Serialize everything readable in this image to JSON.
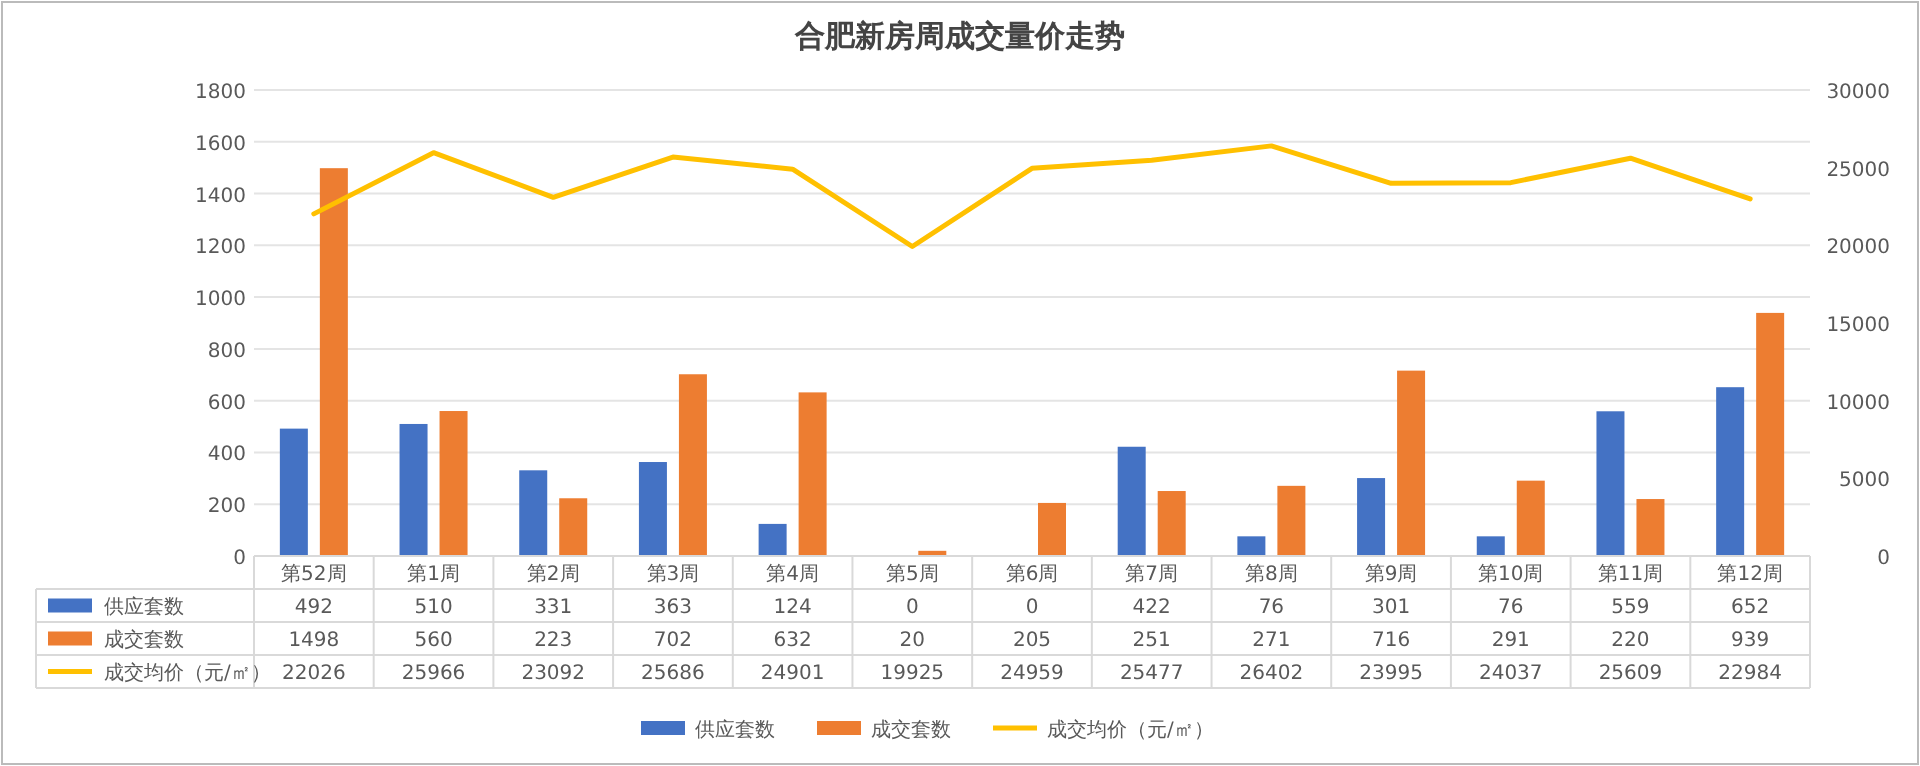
{
  "chart_data": {
    "type": "bar",
    "title": "合肥新房周成交量价走势",
    "categories": [
      "第52周",
      "第1周",
      "第2周",
      "第3周",
      "第4周",
      "第5周",
      "第6周",
      "第7周",
      "第8周",
      "第9周",
      "第10周",
      "第11周",
      "第12周"
    ],
    "series": [
      {
        "name": "供应套数",
        "color": "#4472c4",
        "values": [
          492,
          510,
          331,
          363,
          124,
          0,
          0,
          422,
          76,
          301,
          76,
          559,
          652
        ]
      },
      {
        "name": "成交套数",
        "color": "#ed7d31",
        "values": [
          1498,
          560,
          223,
          702,
          632,
          20,
          205,
          251,
          271,
          716,
          291,
          220,
          939
        ]
      },
      {
        "name": "成交均价（元/㎡）",
        "color": "#ffc000",
        "type": "line",
        "axis": "y2",
        "values": [
          22026,
          25966,
          23092,
          25686,
          24901,
          19925,
          24959,
          25477,
          26402,
          23995,
          24037,
          25609,
          22984
        ]
      }
    ],
    "ylim": [
      0,
      1800
    ],
    "yticks": [
      0,
      200,
      400,
      600,
      800,
      1000,
      1200,
      1400,
      1600,
      1800
    ],
    "y2lim": [
      0,
      30000
    ],
    "y2ticks": [
      0,
      5000,
      10000,
      15000,
      20000,
      25000,
      30000
    ],
    "grid": "y",
    "legend": "bottom",
    "data_labels": true,
    "marker": "none"
  }
}
